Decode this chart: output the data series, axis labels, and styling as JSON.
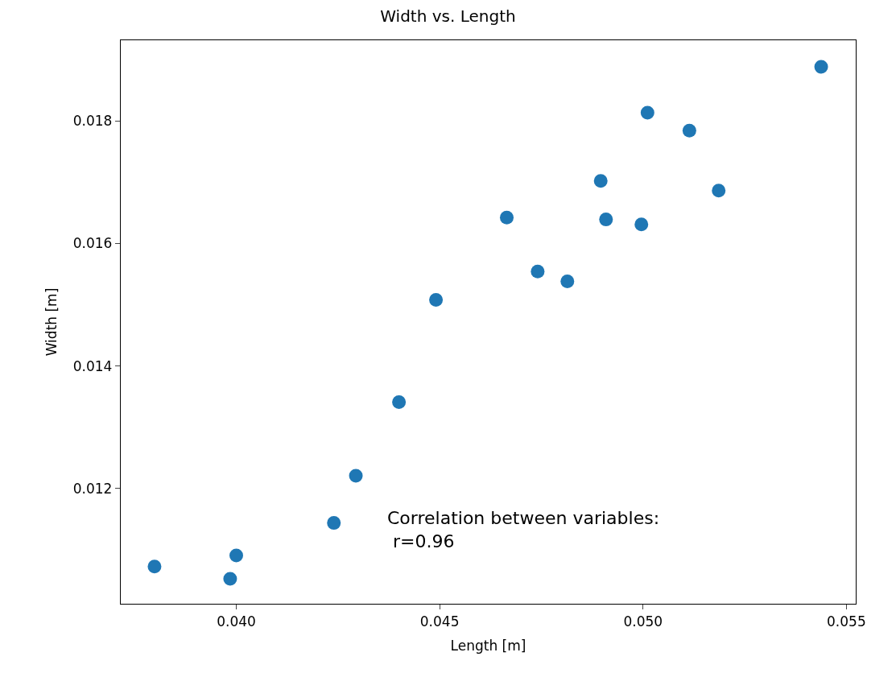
{
  "chart_data": {
    "type": "scatter",
    "title": "Width vs. Length",
    "xlabel": "Length [m]",
    "ylabel": "Width [m]",
    "x": [
      0.03799,
      0.03985,
      0.04,
      0.0424,
      0.04294,
      0.044,
      0.04491,
      0.04665,
      0.04741,
      0.04814,
      0.04896,
      0.04909,
      0.04996,
      0.05011,
      0.05114,
      0.05186,
      0.05438
    ],
    "series": [
      {
        "color": "#1f77b4",
        "values": [
          0.01073,
          0.01053,
          0.01091,
          0.01144,
          0.01221,
          0.01341,
          0.01508,
          0.01642,
          0.01554,
          0.01538,
          0.01702,
          0.01639,
          0.01631,
          0.01813,
          0.01784,
          0.01686,
          0.01888
        ]
      }
    ],
    "xlim": [
      0.03716,
      0.05523
    ],
    "ylim": [
      0.010122,
      0.019313
    ],
    "xticks": [
      {
        "value": 0.04,
        "label": "0.040"
      },
      {
        "value": 0.045,
        "label": "0.045"
      },
      {
        "value": 0.05,
        "label": "0.050"
      },
      {
        "value": 0.055,
        "label": "0.055"
      }
    ],
    "yticks": [
      {
        "value": 0.012,
        "label": "0.012"
      },
      {
        "value": 0.014,
        "label": "0.014"
      },
      {
        "value": 0.016,
        "label": "0.016"
      },
      {
        "value": 0.018,
        "label": "0.018"
      }
    ],
    "annotations": [
      "Correlation between variables:\n r=0.96"
    ],
    "marker": "circle"
  }
}
